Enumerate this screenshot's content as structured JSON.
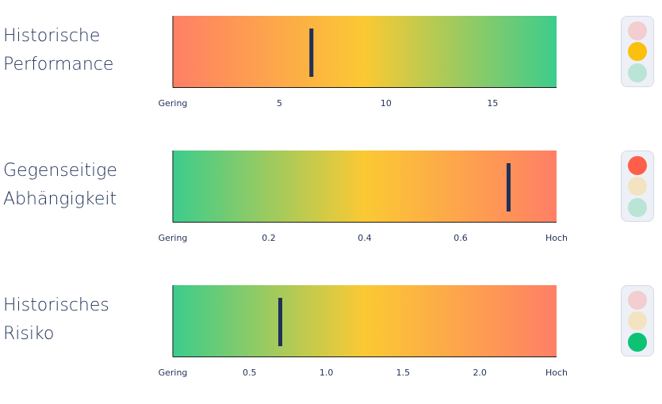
{
  "colors": {
    "green": "#3ccc8c",
    "yellow": "#fbc933",
    "red": "#ff7f66",
    "marker": "#1f3158",
    "lamp_red_on": "#ff5f4a",
    "lamp_red_off": "#f3cdcf",
    "lamp_yellow_on": "#fbbf0e",
    "lamp_yellow_off": "#f3e3c0",
    "lamp_green_on": "#0ec274",
    "lamp_green_off": "#b9e4d6"
  },
  "chart_data": [
    {
      "type": "bullet",
      "label_lines": [
        "Historische",
        "Performance"
      ],
      "gradient": "red-to-green",
      "xlim": [
        0,
        18
      ],
      "ticks": [
        {
          "value": 0,
          "label": "Gering"
        },
        {
          "value": 5,
          "label": "5"
        },
        {
          "value": 10,
          "label": "10"
        },
        {
          "value": 15,
          "label": "15"
        }
      ],
      "marker_value": 6.5,
      "traffic_light": "yellow"
    },
    {
      "type": "bullet",
      "label_lines": [
        "Gegenseitige",
        "Abhängigkeit"
      ],
      "gradient": "green-to-red",
      "xlim": [
        0,
        0.8
      ],
      "ticks": [
        {
          "value": 0,
          "label": "Gering"
        },
        {
          "value": 0.2,
          "label": "0.2"
        },
        {
          "value": 0.4,
          "label": "0.4"
        },
        {
          "value": 0.6,
          "label": "0.6"
        },
        {
          "value": 0.8,
          "label": "Hoch"
        }
      ],
      "marker_value": 0.7,
      "traffic_light": "red"
    },
    {
      "type": "bullet",
      "label_lines": [
        "Historisches",
        "Risiko"
      ],
      "gradient": "green-to-red",
      "xlim": [
        0,
        2.5
      ],
      "ticks": [
        {
          "value": 0,
          "label": "Gering"
        },
        {
          "value": 0.5,
          "label": "0.5"
        },
        {
          "value": 1.0,
          "label": "1.0"
        },
        {
          "value": 1.5,
          "label": "1.5"
        },
        {
          "value": 2.0,
          "label": "2.0"
        },
        {
          "value": 2.5,
          "label": "Hoch"
        }
      ],
      "marker_value": 0.7,
      "traffic_light": "green"
    }
  ]
}
